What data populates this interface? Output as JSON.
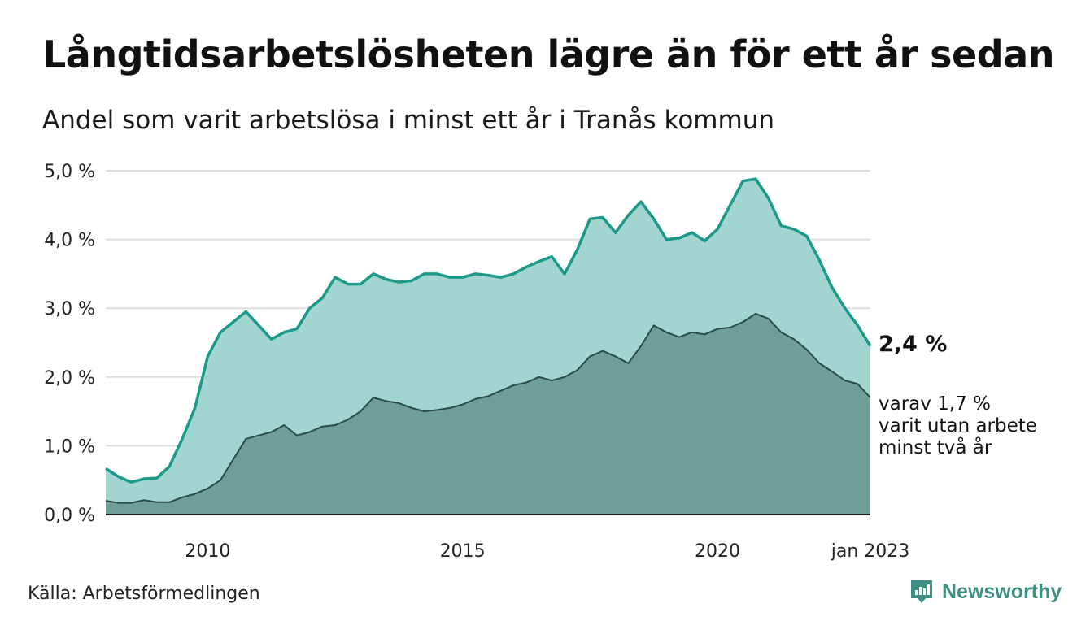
{
  "title": "Långtidsarbetslösheten lägre än för ett år sedan",
  "subtitle": "Andel som varit arbetslösa i minst ett år i Tranås kommun",
  "source": "Källa: Arbetsförmedlingen",
  "brand": "Newsworthy",
  "end_label": "2,4 %",
  "sub_label_lines": [
    "varav 1,7 %",
    "varit utan arbete",
    "minst två år"
  ],
  "colors": {
    "upper_fill": "#a2d5cf",
    "upper_line": "#1c9a89",
    "lower_fill": "#6f9d97",
    "lower_line": "#2a4c47",
    "grid": "#dddddd",
    "brand": "#3e8f84"
  },
  "chart_data": {
    "type": "area",
    "x_ticks": [
      "2010",
      "2015",
      "2020",
      "jan 2023"
    ],
    "x_tick_values": [
      2010.0,
      2015.0,
      2020.0,
      2023.0
    ],
    "xlim": [
      2008.0,
      2023.0
    ],
    "y_ticks": [
      "0,0 %",
      "1,0 %",
      "2,0 %",
      "3,0 %",
      "4,0 %",
      "5,0 %"
    ],
    "y_tick_values": [
      0,
      1,
      2,
      3,
      4,
      5
    ],
    "ylim": [
      0,
      5
    ],
    "grid": true,
    "series": [
      {
        "x": [
          2008.0,
          2008.25,
          2008.5,
          2008.75,
          2009.0,
          2009.25,
          2009.5,
          2009.75,
          2010.0,
          2010.25,
          2010.5,
          2010.75,
          2011.0,
          2011.25,
          2011.5,
          2011.75,
          2012.0,
          2012.25,
          2012.5,
          2012.75,
          2013.0,
          2013.25,
          2013.5,
          2013.75,
          2014.0,
          2014.25,
          2014.5,
          2014.75,
          2015.0,
          2015.25,
          2015.5,
          2015.75,
          2016.0,
          2016.25,
          2016.5,
          2016.75,
          2017.0,
          2017.25,
          2017.5,
          2017.75,
          2018.0,
          2018.25,
          2018.5,
          2018.75,
          2019.0,
          2019.25,
          2019.5,
          2019.75,
          2020.0,
          2020.25,
          2020.5,
          2020.75,
          2021.0,
          2021.25,
          2021.5,
          2021.75,
          2022.0,
          2022.25,
          2022.5,
          2022.75,
          2023.0
        ],
        "values": [
          0.67,
          0.55,
          0.47,
          0.52,
          0.53,
          0.7,
          1.1,
          1.55,
          2.3,
          2.65,
          2.8,
          2.95,
          2.75,
          2.55,
          2.65,
          2.7,
          3.0,
          3.15,
          3.45,
          3.35,
          3.35,
          3.5,
          3.42,
          3.38,
          3.4,
          3.5,
          3.5,
          3.45,
          3.45,
          3.5,
          3.48,
          3.45,
          3.5,
          3.6,
          3.68,
          3.75,
          3.5,
          3.85,
          4.3,
          4.32,
          4.1,
          4.35,
          4.55,
          4.3,
          4.0,
          4.02,
          4.1,
          3.98,
          4.15,
          4.5,
          4.85,
          4.88,
          4.6,
          4.2,
          4.15,
          4.05,
          3.7,
          3.3,
          3.0,
          2.75,
          2.45
        ]
      },
      {
        "x": [
          2008.0,
          2008.25,
          2008.5,
          2008.75,
          2009.0,
          2009.25,
          2009.5,
          2009.75,
          2010.0,
          2010.25,
          2010.5,
          2010.75,
          2011.0,
          2011.25,
          2011.5,
          2011.75,
          2012.0,
          2012.25,
          2012.5,
          2012.75,
          2013.0,
          2013.25,
          2013.5,
          2013.75,
          2014.0,
          2014.25,
          2014.5,
          2014.75,
          2015.0,
          2015.25,
          2015.5,
          2015.75,
          2016.0,
          2016.25,
          2016.5,
          2016.75,
          2017.0,
          2017.25,
          2017.5,
          2017.75,
          2018.0,
          2018.25,
          2018.5,
          2018.75,
          2019.0,
          2019.25,
          2019.5,
          2019.75,
          2020.0,
          2020.25,
          2020.5,
          2020.75,
          2021.0,
          2021.25,
          2021.5,
          2021.75,
          2022.0,
          2022.25,
          2022.5,
          2022.75,
          2023.0
        ],
        "values": [
          0.2,
          0.17,
          0.17,
          0.21,
          0.18,
          0.18,
          0.25,
          0.3,
          0.38,
          0.5,
          0.8,
          1.1,
          1.15,
          1.2,
          1.3,
          1.15,
          1.2,
          1.28,
          1.3,
          1.38,
          1.5,
          1.7,
          1.65,
          1.62,
          1.55,
          1.5,
          1.52,
          1.55,
          1.6,
          1.68,
          1.72,
          1.8,
          1.88,
          1.92,
          2.0,
          1.95,
          2.0,
          2.1,
          2.3,
          2.38,
          2.3,
          2.2,
          2.45,
          2.75,
          2.65,
          2.58,
          2.65,
          2.62,
          2.7,
          2.72,
          2.8,
          2.92,
          2.85,
          2.65,
          2.55,
          2.4,
          2.2,
          2.08,
          1.95,
          1.9,
          1.7
        ]
      }
    ]
  }
}
